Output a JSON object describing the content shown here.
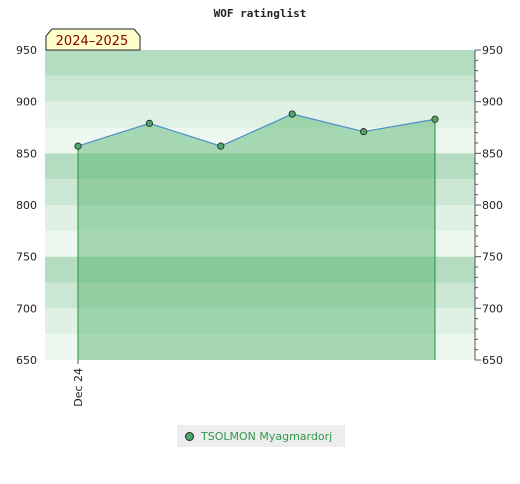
{
  "chart_data": {
    "type": "area",
    "title": "WOF ratinglist",
    "season_badge": "2024–2025",
    "x_tick_labels": [
      "Dec 24"
    ],
    "y_ticks": [
      650,
      700,
      750,
      800,
      850,
      900,
      950
    ],
    "ylim": [
      650,
      950
    ],
    "grid": true,
    "legend_position": "bottom-center",
    "series": [
      {
        "name": "TSOLMON Myagmardorj",
        "values": [
          857,
          879,
          857,
          888,
          871,
          883
        ]
      }
    ],
    "colors": {
      "line": "#4a90c8",
      "fill": "#5cb874",
      "marker": "#4fa569",
      "legend_text": "#2e9a4a",
      "badge_bg": "#ffffcc",
      "badge_text": "#8b0000"
    }
  }
}
